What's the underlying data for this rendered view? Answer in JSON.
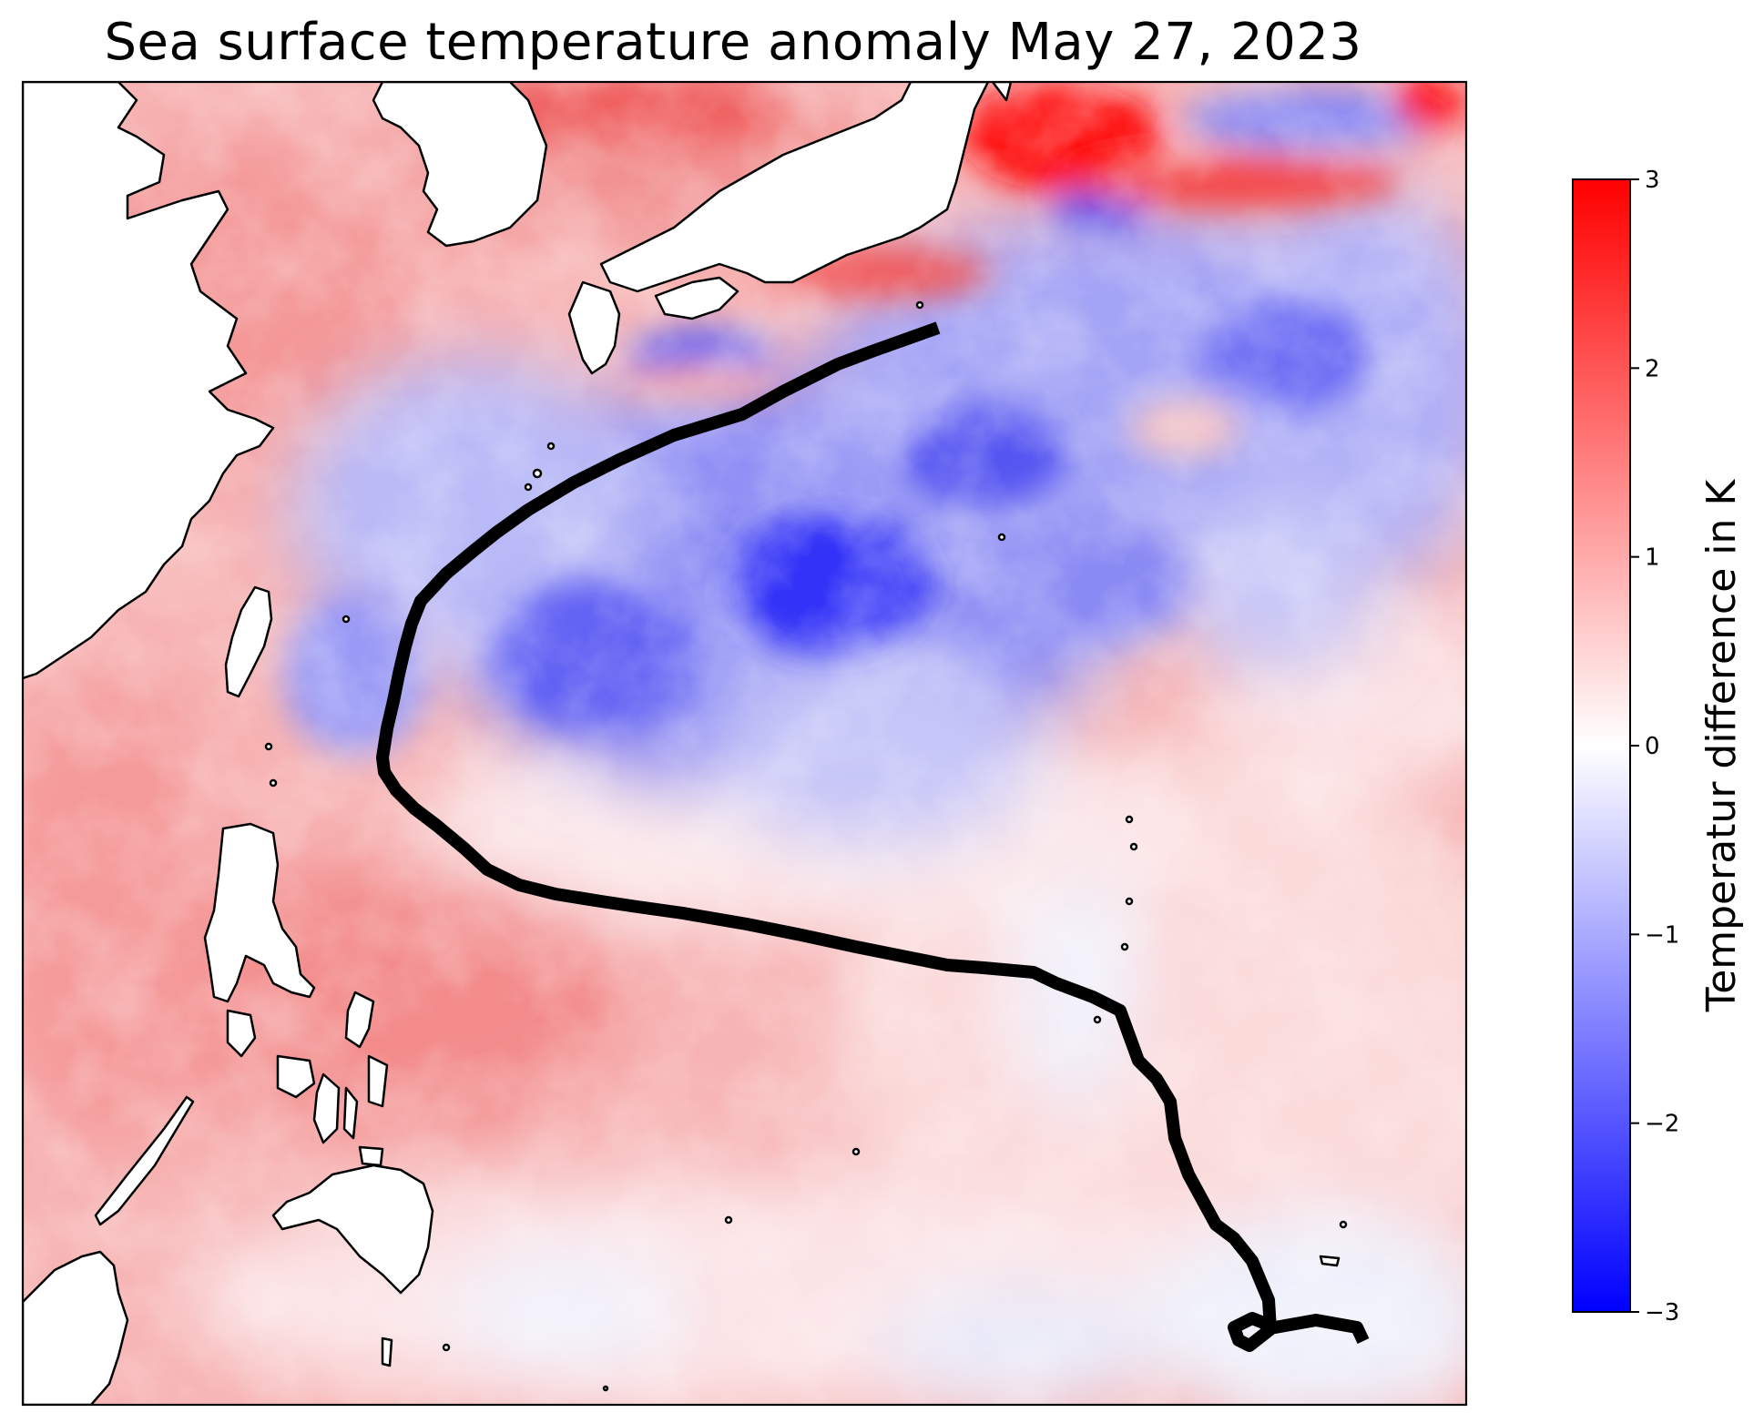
{
  "title": "Sea surface temperature anomaly May 27, 2023",
  "colorbar": {
    "label": "Temperatur difference in K",
    "ticks": [
      "3",
      "2",
      "1",
      "0",
      "−1",
      "−2",
      "−3"
    ],
    "range": [
      -3,
      3
    ],
    "colormap": [
      "#0000ff",
      "#ffffff",
      "#ff0000"
    ]
  },
  "map": {
    "variable": "sea surface temperature anomaly",
    "date": "May 27, 2023",
    "track_color": "#000000",
    "land_color": "#ffffff",
    "coastline_color": "#000000"
  }
}
